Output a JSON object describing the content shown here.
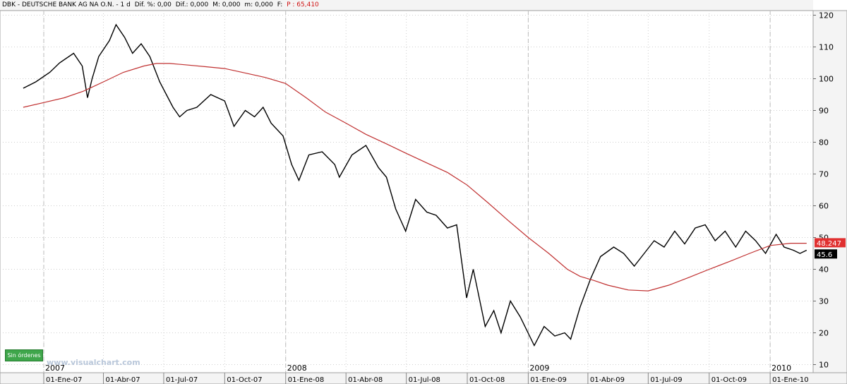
{
  "header": {
    "symbol": "DBK - DEUTSCHE BANK AG NA O.N. - 1 d",
    "dif_pct": "Dif. %: 0,00",
    "dif": "Dif.: 0,000",
    "m": "M: 0,000",
    "m_small": "m: 0,000",
    "f": "F:",
    "p": "P : 65,410"
  },
  "badge": {
    "label": "Sin órdenes"
  },
  "watermark": "www.visualchart.com",
  "colors": {
    "price": "#000000",
    "moving_average": "#c03030",
    "grid": "#cfcfcf",
    "badge": "#3fa64b",
    "last_ma": "#e03030"
  },
  "chart_data": {
    "type": "line",
    "grid": true,
    "ylim": [
      10,
      122
    ],
    "y_axis_position": "right",
    "yticks": [
      120,
      110,
      100,
      90,
      80,
      70,
      60,
      50,
      40,
      30,
      20,
      10
    ],
    "year_labels": [
      "2007",
      "2008",
      "2009",
      "2010"
    ],
    "x_tick_labels": [
      "01-Ene-07",
      "01-Abr-07",
      "01-Jul-07",
      "01-Oct-07",
      "01-Ene-08",
      "01-Abr-08",
      "01-Jul-08",
      "01-Oct-08",
      "01-Ene-09",
      "01-Abr-09",
      "01-Jul-09",
      "01-Oct-09",
      "01-Ene-10"
    ],
    "last_values": {
      "moving_average": "48.247",
      "price": "45.6"
    },
    "series": [
      {
        "values_role": "price",
        "x": [
          "2006-12-01",
          "2006-12-20",
          "2007-01-10",
          "2007-01-25",
          "2007-02-15",
          "2007-02-28",
          "2007-03-08",
          "2007-03-15",
          "2007-03-25",
          "2007-04-10",
          "2007-04-20",
          "2007-05-03",
          "2007-05-15",
          "2007-05-28",
          "2007-06-10",
          "2007-06-25",
          "2007-07-05",
          "2007-07-15",
          "2007-07-25",
          "2007-08-05",
          "2007-08-20",
          "2007-09-10",
          "2007-10-01",
          "2007-10-15",
          "2007-11-01",
          "2007-11-15",
          "2007-11-28",
          "2007-12-10",
          "2007-12-28",
          "2008-01-10",
          "2008-01-21",
          "2008-02-05",
          "2008-02-25",
          "2008-03-15",
          "2008-03-22",
          "2008-04-10",
          "2008-05-01",
          "2008-05-20",
          "2008-06-01",
          "2008-06-15",
          "2008-06-30",
          "2008-07-15",
          "2008-08-01",
          "2008-08-15",
          "2008-09-01",
          "2008-09-15",
          "2008-09-30",
          "2008-10-10",
          "2008-10-28",
          "2008-11-10",
          "2008-11-21",
          "2008-12-05",
          "2008-12-20",
          "2009-01-10",
          "2009-01-25",
          "2009-02-10",
          "2009-02-25",
          "2009-03-06",
          "2009-03-20",
          "2009-04-05",
          "2009-04-20",
          "2009-05-10",
          "2009-05-25",
          "2009-06-10",
          "2009-06-25",
          "2009-07-10",
          "2009-07-25",
          "2009-08-10",
          "2009-08-25",
          "2009-09-10",
          "2009-09-25",
          "2009-10-10",
          "2009-10-25",
          "2009-11-10",
          "2009-11-25",
          "2009-12-10",
          "2009-12-25",
          "2010-01-10",
          "2010-01-22",
          "2010-02-05",
          "2010-02-15",
          "2010-02-25"
        ],
        "values": [
          97,
          99,
          102,
          105,
          108,
          104,
          94,
          100,
          107,
          112,
          117,
          113,
          108,
          111,
          107,
          99,
          95,
          91,
          88,
          90,
          91,
          95,
          93,
          85,
          90,
          88,
          91,
          86,
          82,
          73,
          68,
          76,
          77,
          73,
          69,
          76,
          79,
          72,
          69,
          59,
          52,
          62,
          58,
          57,
          53,
          54,
          31,
          40,
          22,
          27,
          20,
          30,
          25,
          16,
          22,
          19,
          20,
          18,
          28,
          37,
          44,
          47,
          45,
          41,
          45,
          49,
          47,
          52,
          48,
          53,
          54,
          49,
          52,
          47,
          52,
          49,
          45,
          51,
          47,
          46,
          45,
          46
        ]
      },
      {
        "values_role": "moving_average",
        "x": [
          "2006-12-01",
          "2007-01-01",
          "2007-02-01",
          "2007-03-01",
          "2007-04-01",
          "2007-05-01",
          "2007-06-01",
          "2007-06-20",
          "2007-07-10",
          "2007-08-01",
          "2007-09-01",
          "2007-10-01",
          "2007-11-01",
          "2007-12-01",
          "2008-01-01",
          "2008-02-01",
          "2008-03-01",
          "2008-04-01",
          "2008-05-01",
          "2008-06-01",
          "2008-07-01",
          "2008-08-01",
          "2008-09-01",
          "2008-10-01",
          "2008-11-01",
          "2008-12-01",
          "2009-01-01",
          "2009-02-01",
          "2009-03-01",
          "2009-03-20",
          "2009-04-10",
          "2009-05-01",
          "2009-06-01",
          "2009-07-01",
          "2009-08-01",
          "2009-09-01",
          "2009-10-01",
          "2009-11-01",
          "2009-12-01",
          "2010-01-01",
          "2010-02-01",
          "2010-02-25"
        ],
        "values": [
          91,
          92.5,
          94,
          96,
          99,
          102,
          104,
          104.8,
          104.8,
          104.4,
          103.8,
          103.2,
          101.8,
          100.4,
          98.5,
          94,
          89.5,
          86,
          82.5,
          79.5,
          76.5,
          73.5,
          70.5,
          66.5,
          61,
          55.5,
          50,
          45,
          40,
          37.8,
          36.5,
          35,
          33.5,
          33.2,
          35,
          37.5,
          40,
          42.5,
          45,
          47.5,
          48.2,
          48.2
        ]
      }
    ]
  }
}
